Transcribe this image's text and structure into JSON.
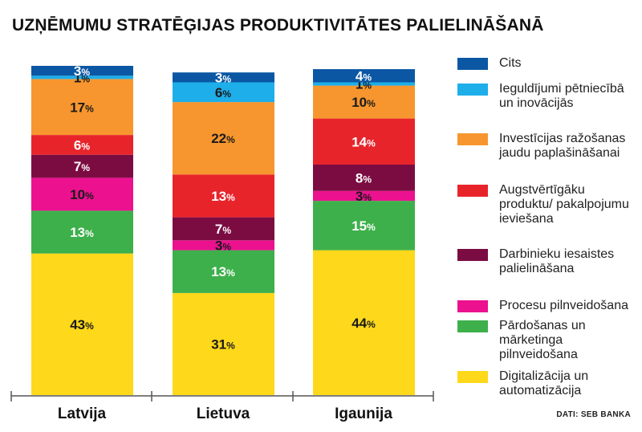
{
  "title": "UZŅĒMUMU STRATĒĢIJAS PRODUKTIVITĀTES PALIELINĀŠANĀ",
  "source": "DATI: SEB BANKA",
  "chart_data": {
    "type": "bar",
    "stacked": true,
    "unit": "%",
    "categories": [
      "Latvija",
      "Lietuva",
      "Igaunija"
    ],
    "series": [
      {
        "name": "Digitalizācija un automatizācija",
        "color": "#fdd81b",
        "values": [
          43,
          31,
          44
        ]
      },
      {
        "name": "Pārdošanas un mārketinga pilnveidošana",
        "color": "#3db04b",
        "values": [
          13,
          13,
          15
        ]
      },
      {
        "name": "Procesu pilnveidošana",
        "color": "#ec118f",
        "values": [
          10,
          3,
          3
        ]
      },
      {
        "name": "Darbinieku iesaistes palielināšana",
        "color": "#7b0c42",
        "values": [
          7,
          7,
          8
        ]
      },
      {
        "name": "Augstvērtīgāku produktu/ pakalpojumu ieviešana",
        "color": "#e8242b",
        "values": [
          6,
          13,
          14
        ]
      },
      {
        "name": "Investīcijas ražošanas jaudu paplašināšanai",
        "color": "#f7962e",
        "values": [
          17,
          22,
          10
        ]
      },
      {
        "name": "Ieguldījumi pētniecībā un inovācijās",
        "color": "#1eaee9",
        "values": [
          1,
          6,
          1
        ]
      },
      {
        "name": "Cits",
        "color": "#0b57a4",
        "values": [
          3,
          3,
          4
        ]
      }
    ],
    "legend_position": "right",
    "grid": false
  },
  "legend": [
    {
      "label": "Cits",
      "color": "#0b57a4"
    },
    {
      "label": "Ieguldījumi pētniecībā un inovācijās",
      "color": "#1eaee9"
    },
    {
      "label": "Investīcijas ražošanas jaudu paplašināšanai",
      "color": "#f7962e"
    },
    {
      "label": "Augstvērtīgāku produktu/ pakalpojumu ieviešana",
      "color": "#e8242b"
    },
    {
      "label": "Darbinieku iesaistes palielināšana",
      "color": "#7b0c42"
    },
    {
      "label": "Procesu pilnveidošana",
      "color": "#ec118f"
    },
    {
      "label": "Pārdošanas un mārketinga pilnveidošana",
      "color": "#3db04b"
    },
    {
      "label": "Digitalizācija un automatizācija",
      "color": "#fdd81b"
    }
  ]
}
